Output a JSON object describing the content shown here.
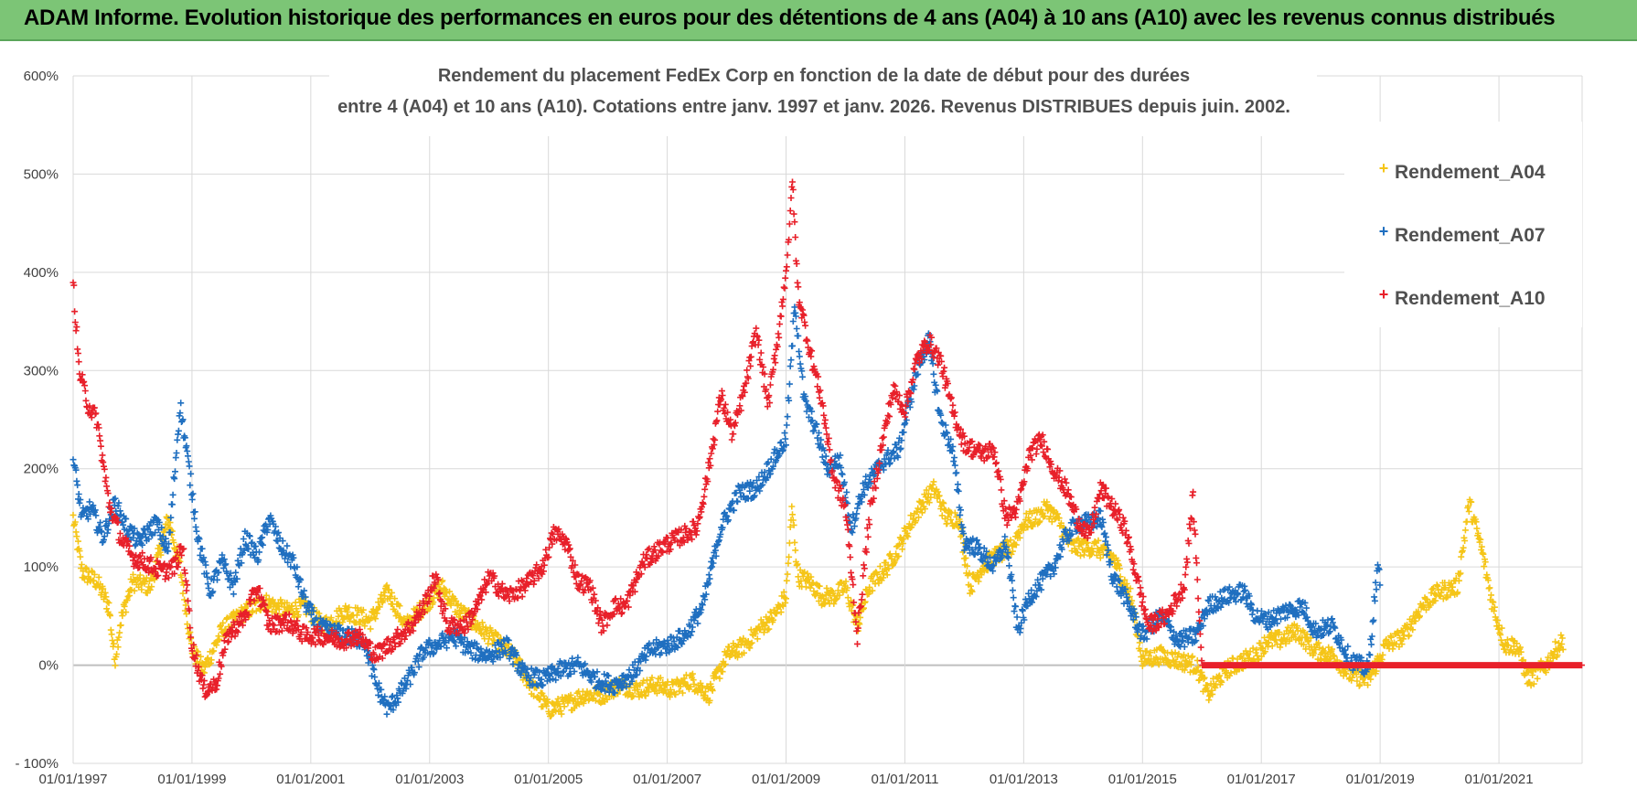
{
  "banner": {
    "text": "ADAM Informe. Evolution historique des performances en euros pour des détentions de 4 ans (A04) à 10 ans (A10) avec les revenus connus distribués"
  },
  "colors": {
    "banner_bg": "#7cc576",
    "A04": "#f5c518",
    "A07": "#1f6fc0",
    "A10": "#e8202a",
    "grid": "#d9d9d9"
  },
  "chart_data": {
    "type": "scatter",
    "title_lines": [
      "Rendement du placement FedEx Corp en fonction de la date de début pour des durées",
      "entre 4 (A04) et 10 ans (A10). Cotations entre janv. 1997 et janv. 2026. Revenus DISTRIBUES depuis juin. 2002."
    ],
    "x_tick_labels": [
      "01/01/1997",
      "01/01/1999",
      "01/01/2001",
      "01/01/2003",
      "01/01/2005",
      "01/01/2007",
      "01/01/2009",
      "01/01/2011",
      "01/01/2013",
      "01/01/2015",
      "01/01/2017",
      "01/01/2019",
      "01/01/2021"
    ],
    "x_range": [
      1997.0,
      2022.4
    ],
    "y_tick_labels": [
      "600%",
      "500%",
      "400%",
      "300%",
      "200%",
      "100%",
      "0%",
      "- 100%"
    ],
    "y_range": [
      -100,
      600
    ],
    "grid": true,
    "legend_position": "top-right",
    "marker": "plus",
    "series": [
      {
        "name": "Rendement_A04",
        "color": "#f5c518",
        "x_start": 1997.0,
        "x_end": 2022.08,
        "points": [
          [
            1997.0,
            150
          ],
          [
            1997.15,
            95
          ],
          [
            1997.4,
            85
          ],
          [
            1997.6,
            60
          ],
          [
            1997.7,
            5
          ],
          [
            1997.8,
            45
          ],
          [
            1998.0,
            85
          ],
          [
            1998.3,
            80
          ],
          [
            1998.6,
            150
          ],
          [
            1998.8,
            100
          ],
          [
            1999.0,
            15
          ],
          [
            1999.2,
            -5
          ],
          [
            1999.5,
            35
          ],
          [
            1999.8,
            50
          ],
          [
            2000.2,
            65
          ],
          [
            2000.6,
            55
          ],
          [
            2000.9,
            60
          ],
          [
            2001.2,
            40
          ],
          [
            2001.6,
            55
          ],
          [
            2002.0,
            45
          ],
          [
            2002.3,
            75
          ],
          [
            2002.6,
            40
          ],
          [
            2002.9,
            60
          ],
          [
            2003.2,
            80
          ],
          [
            2003.5,
            55
          ],
          [
            2003.8,
            40
          ],
          [
            2004.1,
            25
          ],
          [
            2004.4,
            10
          ],
          [
            2004.7,
            -20
          ],
          [
            2005.0,
            -45
          ],
          [
            2005.3,
            -40
          ],
          [
            2005.6,
            -30
          ],
          [
            2005.9,
            -30
          ],
          [
            2006.2,
            -20
          ],
          [
            2006.5,
            -25
          ],
          [
            2006.8,
            -20
          ],
          [
            2007.1,
            -25
          ],
          [
            2007.4,
            -15
          ],
          [
            2007.7,
            -30
          ],
          [
            2008.0,
            10
          ],
          [
            2008.3,
            20
          ],
          [
            2008.6,
            40
          ],
          [
            2008.8,
            50
          ],
          [
            2009.0,
            70
          ],
          [
            2009.1,
            160
          ],
          [
            2009.2,
            90
          ],
          [
            2009.4,
            85
          ],
          [
            2009.6,
            70
          ],
          [
            2009.8,
            70
          ],
          [
            2010.0,
            80
          ],
          [
            2010.2,
            40
          ],
          [
            2010.4,
            80
          ],
          [
            2010.7,
            100
          ],
          [
            2010.9,
            120
          ],
          [
            2011.1,
            145
          ],
          [
            2011.3,
            165
          ],
          [
            2011.5,
            180
          ],
          [
            2011.7,
            150
          ],
          [
            2011.9,
            150
          ],
          [
            2012.1,
            80
          ],
          [
            2012.3,
            100
          ],
          [
            2012.5,
            110
          ],
          [
            2012.8,
            120
          ],
          [
            2013.0,
            145
          ],
          [
            2013.2,
            150
          ],
          [
            2013.4,
            160
          ],
          [
            2013.6,
            145
          ],
          [
            2013.8,
            120
          ],
          [
            2014.0,
            120
          ],
          [
            2014.2,
            120
          ],
          [
            2014.5,
            110
          ],
          [
            2014.8,
            70
          ],
          [
            2015.0,
            5
          ],
          [
            2015.3,
            10
          ],
          [
            2015.6,
            5
          ],
          [
            2015.9,
            0
          ],
          [
            2016.1,
            -30
          ],
          [
            2016.4,
            -5
          ],
          [
            2016.7,
            5
          ],
          [
            2016.9,
            10
          ],
          [
            2017.1,
            25
          ],
          [
            2017.3,
            25
          ],
          [
            2017.6,
            35
          ],
          [
            2017.9,
            15
          ],
          [
            2018.2,
            10
          ],
          [
            2018.5,
            -10
          ],
          [
            2018.8,
            -15
          ],
          [
            2019.1,
            20
          ],
          [
            2019.4,
            30
          ],
          [
            2019.7,
            60
          ],
          [
            2020.0,
            75
          ],
          [
            2020.3,
            80
          ],
          [
            2020.5,
            165
          ],
          [
            2020.7,
            120
          ],
          [
            2020.9,
            60
          ],
          [
            2021.1,
            20
          ],
          [
            2021.3,
            20
          ],
          [
            2021.5,
            -15
          ],
          [
            2021.8,
            0
          ],
          [
            2022.0,
            20
          ],
          [
            2022.08,
            25
          ]
        ]
      },
      {
        "name": "Rendement_A07",
        "color": "#1f6fc0",
        "x_start": 1997.0,
        "x_end": 2019.0,
        "points": [
          [
            1997.0,
            210
          ],
          [
            1997.15,
            150
          ],
          [
            1997.3,
            160
          ],
          [
            1997.5,
            130
          ],
          [
            1997.7,
            165
          ],
          [
            1997.9,
            140
          ],
          [
            1998.1,
            125
          ],
          [
            1998.4,
            145
          ],
          [
            1998.6,
            115
          ],
          [
            1998.8,
            265
          ],
          [
            1998.95,
            200
          ],
          [
            1999.1,
            130
          ],
          [
            1999.3,
            75
          ],
          [
            1999.5,
            105
          ],
          [
            1999.7,
            80
          ],
          [
            1999.9,
            130
          ],
          [
            2000.1,
            110
          ],
          [
            2000.3,
            150
          ],
          [
            2000.5,
            120
          ],
          [
            2000.7,
            105
          ],
          [
            2000.9,
            65
          ],
          [
            2001.1,
            40
          ],
          [
            2001.3,
            35
          ],
          [
            2001.6,
            30
          ],
          [
            2001.9,
            25
          ],
          [
            2002.1,
            -20
          ],
          [
            2002.3,
            -45
          ],
          [
            2002.6,
            -20
          ],
          [
            2002.9,
            15
          ],
          [
            2003.1,
            20
          ],
          [
            2003.4,
            30
          ],
          [
            2003.7,
            15
          ],
          [
            2004.0,
            10
          ],
          [
            2004.3,
            20
          ],
          [
            2004.6,
            -10
          ],
          [
            2004.9,
            -15
          ],
          [
            2005.2,
            -5
          ],
          [
            2005.5,
            0
          ],
          [
            2005.8,
            -15
          ],
          [
            2006.1,
            -20
          ],
          [
            2006.4,
            -10
          ],
          [
            2006.7,
            15
          ],
          [
            2007.0,
            20
          ],
          [
            2007.3,
            30
          ],
          [
            2007.6,
            60
          ],
          [
            2007.9,
            140
          ],
          [
            2008.2,
            175
          ],
          [
            2008.5,
            180
          ],
          [
            2008.8,
            210
          ],
          [
            2009.0,
            230
          ],
          [
            2009.15,
            370
          ],
          [
            2009.3,
            270
          ],
          [
            2009.5,
            240
          ],
          [
            2009.7,
            200
          ],
          [
            2009.9,
            210
          ],
          [
            2010.1,
            140
          ],
          [
            2010.3,
            180
          ],
          [
            2010.6,
            205
          ],
          [
            2010.9,
            220
          ],
          [
            2011.2,
            300
          ],
          [
            2011.4,
            330
          ],
          [
            2011.6,
            250
          ],
          [
            2011.8,
            220
          ],
          [
            2012.0,
            125
          ],
          [
            2012.2,
            120
          ],
          [
            2012.5,
            100
          ],
          [
            2012.7,
            125
          ],
          [
            2012.9,
            35
          ],
          [
            2013.1,
            70
          ],
          [
            2013.3,
            85
          ],
          [
            2013.5,
            100
          ],
          [
            2013.7,
            130
          ],
          [
            2013.9,
            145
          ],
          [
            2014.1,
            145
          ],
          [
            2014.3,
            150
          ],
          [
            2014.5,
            90
          ],
          [
            2014.7,
            70
          ],
          [
            2015.0,
            30
          ],
          [
            2015.3,
            50
          ],
          [
            2015.6,
            25
          ],
          [
            2015.9,
            30
          ],
          [
            2016.1,
            60
          ],
          [
            2016.4,
            70
          ],
          [
            2016.7,
            75
          ],
          [
            2016.9,
            50
          ],
          [
            2017.1,
            45
          ],
          [
            2017.4,
            55
          ],
          [
            2017.7,
            60
          ],
          [
            2017.9,
            35
          ],
          [
            2018.2,
            40
          ],
          [
            2018.5,
            5
          ],
          [
            2018.8,
            -5
          ],
          [
            2018.95,
            95
          ],
          [
            2019.0,
            90
          ]
        ]
      },
      {
        "name": "Rendement_A10",
        "color": "#e8202a",
        "x_start": 1997.0,
        "x_end": 2022.4,
        "points": [
          [
            1997.0,
            390
          ],
          [
            1997.1,
            300
          ],
          [
            1997.25,
            265
          ],
          [
            1997.4,
            250
          ],
          [
            1997.6,
            165
          ],
          [
            1997.8,
            130
          ],
          [
            1998.0,
            110
          ],
          [
            1998.2,
            105
          ],
          [
            1998.5,
            95
          ],
          [
            1998.7,
            100
          ],
          [
            1998.85,
            120
          ],
          [
            1999.0,
            20
          ],
          [
            1999.2,
            -25
          ],
          [
            1999.4,
            -20
          ],
          [
            1999.6,
            30
          ],
          [
            1999.9,
            50
          ],
          [
            2000.1,
            80
          ],
          [
            2000.3,
            40
          ],
          [
            2000.6,
            45
          ],
          [
            2000.9,
            30
          ],
          [
            2001.2,
            30
          ],
          [
            2001.5,
            25
          ],
          [
            2001.8,
            30
          ],
          [
            2002.1,
            10
          ],
          [
            2002.4,
            25
          ],
          [
            2002.7,
            40
          ],
          [
            2002.9,
            60
          ],
          [
            2003.1,
            90
          ],
          [
            2003.3,
            40
          ],
          [
            2003.6,
            40
          ],
          [
            2003.8,
            60
          ],
          [
            2004.0,
            90
          ],
          [
            2004.3,
            70
          ],
          [
            2004.6,
            80
          ],
          [
            2004.9,
            100
          ],
          [
            2005.1,
            135
          ],
          [
            2005.3,
            125
          ],
          [
            2005.5,
            85
          ],
          [
            2005.7,
            80
          ],
          [
            2005.9,
            40
          ],
          [
            2006.1,
            60
          ],
          [
            2006.3,
            60
          ],
          [
            2006.6,
            105
          ],
          [
            2006.9,
            120
          ],
          [
            2007.2,
            130
          ],
          [
            2007.5,
            140
          ],
          [
            2007.7,
            200
          ],
          [
            2007.9,
            275
          ],
          [
            2008.1,
            235
          ],
          [
            2008.3,
            280
          ],
          [
            2008.5,
            340
          ],
          [
            2008.7,
            265
          ],
          [
            2008.9,
            350
          ],
          [
            2009.05,
            430
          ],
          [
            2009.1,
            500
          ],
          [
            2009.2,
            380
          ],
          [
            2009.4,
            320
          ],
          [
            2009.6,
            270
          ],
          [
            2009.8,
            190
          ],
          [
            2010.0,
            160
          ],
          [
            2010.2,
            30
          ],
          [
            2010.4,
            150
          ],
          [
            2010.6,
            220
          ],
          [
            2010.8,
            280
          ],
          [
            2011.0,
            260
          ],
          [
            2011.2,
            310
          ],
          [
            2011.4,
            330
          ],
          [
            2011.6,
            310
          ],
          [
            2011.8,
            260
          ],
          [
            2012.0,
            225
          ],
          [
            2012.3,
            215
          ],
          [
            2012.5,
            220
          ],
          [
            2012.7,
            150
          ],
          [
            2012.9,
            160
          ],
          [
            2013.1,
            215
          ],
          [
            2013.3,
            230
          ],
          [
            2013.5,
            200
          ],
          [
            2013.7,
            180
          ],
          [
            2013.9,
            150
          ],
          [
            2014.1,
            130
          ],
          [
            2014.3,
            180
          ],
          [
            2014.5,
            160
          ],
          [
            2014.7,
            140
          ],
          [
            2014.9,
            90
          ],
          [
            2015.1,
            40
          ],
          [
            2015.4,
            50
          ],
          [
            2015.7,
            80
          ],
          [
            2015.85,
            170
          ],
          [
            2016.0,
            0
          ],
          [
            2016.5,
            0
          ],
          [
            2017.0,
            0
          ],
          [
            2017.5,
            0
          ],
          [
            2018.0,
            0
          ],
          [
            2018.5,
            0
          ],
          [
            2019.0,
            0
          ],
          [
            2019.5,
            0
          ],
          [
            2020.0,
            0
          ],
          [
            2020.5,
            0
          ],
          [
            2021.0,
            0
          ],
          [
            2021.5,
            0
          ],
          [
            2022.0,
            0
          ],
          [
            2022.4,
            0
          ]
        ]
      }
    ]
  }
}
